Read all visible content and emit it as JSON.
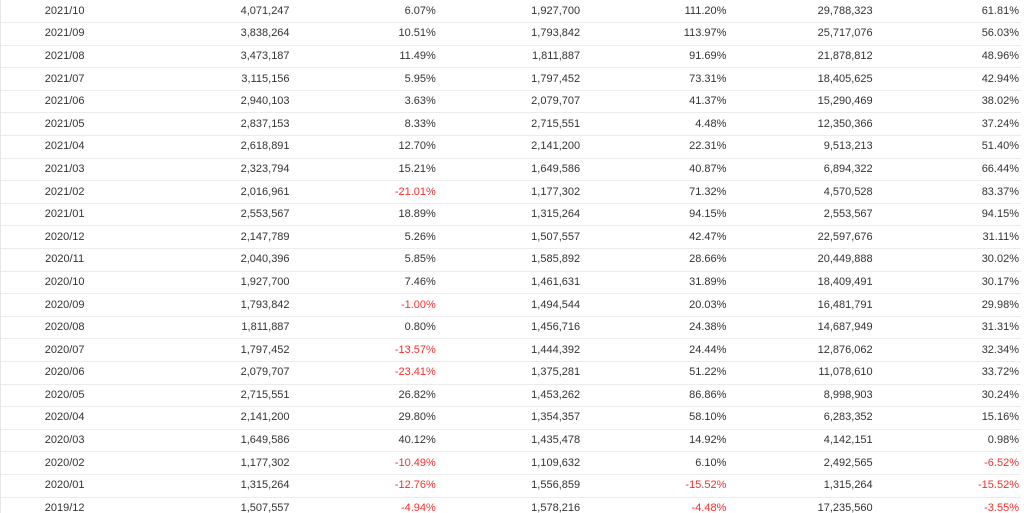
{
  "table": {
    "rows": [
      [
        "2021/10",
        "4,071,247",
        "6.07%",
        "1,927,700",
        "111.20%",
        "29,788,323",
        "61.81%"
      ],
      [
        "2021/09",
        "3,838,264",
        "10.51%",
        "1,793,842",
        "113.97%",
        "25,717,076",
        "56.03%"
      ],
      [
        "2021/08",
        "3,473,187",
        "11.49%",
        "1,811,887",
        "91.69%",
        "21,878,812",
        "48.96%"
      ],
      [
        "2021/07",
        "3,115,156",
        "5.95%",
        "1,797,452",
        "73.31%",
        "18,405,625",
        "42.94%"
      ],
      [
        "2021/06",
        "2,940,103",
        "3.63%",
        "2,079,707",
        "41.37%",
        "15,290,469",
        "38.02%"
      ],
      [
        "2021/05",
        "2,837,153",
        "8.33%",
        "2,715,551",
        "4.48%",
        "12,350,366",
        "37.24%"
      ],
      [
        "2021/04",
        "2,618,891",
        "12.70%",
        "2,141,200",
        "22.31%",
        "9,513,213",
        "51.40%"
      ],
      [
        "2021/03",
        "2,323,794",
        "15.21%",
        "1,649,586",
        "40.87%",
        "6,894,322",
        "66.44%"
      ],
      [
        "2021/02",
        "2,016,961",
        "-21.01%",
        "1,177,302",
        "71.32%",
        "4,570,528",
        "83.37%"
      ],
      [
        "2021/01",
        "2,553,567",
        "18.89%",
        "1,315,264",
        "94.15%",
        "2,553,567",
        "94.15%"
      ],
      [
        "2020/12",
        "2,147,789",
        "5.26%",
        "1,507,557",
        "42.47%",
        "22,597,676",
        "31.11%"
      ],
      [
        "2020/11",
        "2,040,396",
        "5.85%",
        "1,585,892",
        "28.66%",
        "20,449,888",
        "30.02%"
      ],
      [
        "2020/10",
        "1,927,700",
        "7.46%",
        "1,461,631",
        "31.89%",
        "18,409,491",
        "30.17%"
      ],
      [
        "2020/09",
        "1,793,842",
        "-1.00%",
        "1,494,544",
        "20.03%",
        "16,481,791",
        "29.98%"
      ],
      [
        "2020/08",
        "1,811,887",
        "0.80%",
        "1,456,716",
        "24.38%",
        "14,687,949",
        "31.31%"
      ],
      [
        "2020/07",
        "1,797,452",
        "-13.57%",
        "1,444,392",
        "24.44%",
        "12,876,062",
        "32.34%"
      ],
      [
        "2020/06",
        "2,079,707",
        "-23.41%",
        "1,375,281",
        "51.22%",
        "11,078,610",
        "33.72%"
      ],
      [
        "2020/05",
        "2,715,551",
        "26.82%",
        "1,453,262",
        "86.86%",
        "8,998,903",
        "30.24%"
      ],
      [
        "2020/04",
        "2,141,200",
        "29.80%",
        "1,354,357",
        "58.10%",
        "6,283,352",
        "15.16%"
      ],
      [
        "2020/03",
        "1,649,586",
        "40.12%",
        "1,435,478",
        "14.92%",
        "4,142,151",
        "0.98%"
      ],
      [
        "2020/02",
        "1,177,302",
        "-10.49%",
        "1,109,632",
        "6.10%",
        "2,492,565",
        "-6.52%"
      ],
      [
        "2020/01",
        "1,315,264",
        "-12.76%",
        "1,556,859",
        "-15.52%",
        "1,315,264",
        "-15.52%"
      ],
      [
        "2019/12",
        "1,507,557",
        "-4.94%",
        "1,578,216",
        "-4.48%",
        "17,235,560",
        "-3.55%"
      ]
    ]
  },
  "colors": {
    "negative": "#ff2a2a",
    "text": "#333333",
    "row_border": "#ececec"
  }
}
